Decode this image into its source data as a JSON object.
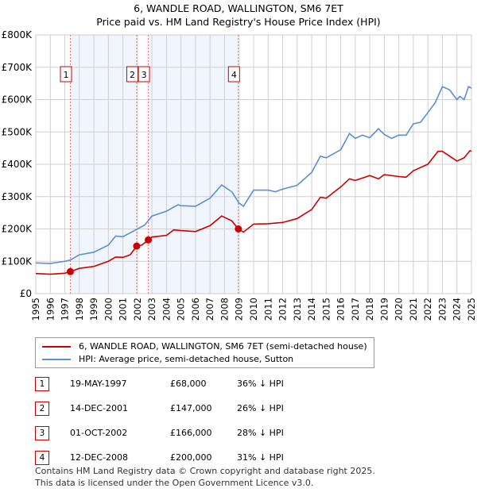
{
  "title": "6, WANDLE ROAD, WALLINGTON, SM6 7ET",
  "subtitle": "Price paid vs. HM Land Registry's House Price Index (HPI)",
  "chart_data": {
    "type": "line",
    "title": "6, WANDLE ROAD, WALLINGTON, SM6 7ET",
    "subtitle": "Price paid vs. HM Land Registry's House Price Index (HPI)",
    "xlim": [
      1995,
      2025
    ],
    "ylim": [
      0,
      800000
    ],
    "x_ticks": [
      "1995",
      "1996",
      "1997",
      "1998",
      "1999",
      "2000",
      "2001",
      "2002",
      "2003",
      "2004",
      "2005",
      "2006",
      "2007",
      "2008",
      "2009",
      "2010",
      "2011",
      "2012",
      "2013",
      "2014",
      "2015",
      "2016",
      "2017",
      "2018",
      "2019",
      "2020",
      "2021",
      "2022",
      "2023",
      "2024",
      "2025"
    ],
    "y_ticks": [
      {
        "v": 0,
        "label": "£0"
      },
      {
        "v": 100000,
        "label": "£100K"
      },
      {
        "v": 200000,
        "label": "£200K"
      },
      {
        "v": 300000,
        "label": "£300K"
      },
      {
        "v": 400000,
        "label": "£400K"
      },
      {
        "v": 500000,
        "label": "£500K"
      },
      {
        "v": 600000,
        "label": "£600K"
      },
      {
        "v": 700000,
        "label": "£700K"
      },
      {
        "v": 800000,
        "label": "£800K"
      }
    ],
    "grid": true,
    "series": [
      {
        "name": "6, WANDLE ROAD, WALLINGTON, SM6 7ET (semi-detached house)",
        "color": "#cc0000",
        "x": [
          1995,
          1996,
          1997,
          1997.38,
          1998,
          1999,
          2000,
          2000.5,
          2001,
          2001.5,
          2001.95,
          2002.3,
          2002.75,
          2003,
          2004,
          2004.5,
          2005,
          2006,
          2007,
          2007.8,
          2008.5,
          2008.95,
          2009.3,
          2010,
          2011,
          2012,
          2013,
          2014,
          2014.6,
          2015,
          2016,
          2016.6,
          2017,
          2018,
          2018.6,
          2019,
          2020,
          2020.5,
          2021,
          2022,
          2022.7,
          2023,
          2023.5,
          2024,
          2024.5,
          2024.9,
          2025
        ],
        "y": [
          62000,
          60000,
          63000,
          68000,
          78000,
          84000,
          100000,
          113000,
          112000,
          120000,
          147000,
          150000,
          166000,
          175000,
          180000,
          197000,
          195000,
          192000,
          210000,
          240000,
          225000,
          200000,
          190000,
          215000,
          216000,
          220000,
          232000,
          260000,
          298000,
          295000,
          330000,
          355000,
          350000,
          365000,
          355000,
          368000,
          362000,
          360000,
          380000,
          400000,
          440000,
          440000,
          425000,
          410000,
          420000,
          442000,
          440000
        ]
      },
      {
        "name": "HPI: Average price, semi-detached house, Sutton",
        "color": "#5b8fd4",
        "x": [
          1995,
          1996,
          1997,
          1997.38,
          1998,
          1999,
          2000,
          2000.5,
          2001,
          2002,
          2002.5,
          2003,
          2004,
          2004.8,
          2005,
          2006,
          2007,
          2007.8,
          2008.5,
          2009,
          2009.3,
          2010,
          2011,
          2011.5,
          2012,
          2013,
          2014,
          2014.6,
          2015,
          2016,
          2016.6,
          2017,
          2017.5,
          2018,
          2018.6,
          2019,
          2019.5,
          2020,
          2020.5,
          2021,
          2021.5,
          2022,
          2022.5,
          2023,
          2023.5,
          2024,
          2024.2,
          2024.5,
          2024.8,
          2025
        ],
        "y": [
          95000,
          93000,
          100000,
          104000,
          120000,
          128000,
          150000,
          178000,
          176000,
          200000,
          212000,
          240000,
          255000,
          275000,
          272000,
          270000,
          295000,
          336000,
          315000,
          280000,
          270000,
          320000,
          320000,
          315000,
          323000,
          335000,
          375000,
          425000,
          420000,
          445000,
          495000,
          480000,
          490000,
          482000,
          510000,
          492000,
          480000,
          490000,
          490000,
          525000,
          530000,
          560000,
          590000,
          640000,
          630000,
          600000,
          610000,
          600000,
          640000,
          635000
        ]
      }
    ],
    "sales": [
      {
        "n": "1",
        "x": 1997.38,
        "y": 68000
      },
      {
        "n": "2",
        "x": 2001.95,
        "y": 147000
      },
      {
        "n": "3",
        "x": 2002.75,
        "y": 166000
      },
      {
        "n": "4",
        "x": 2008.95,
        "y": 200000
      }
    ],
    "shaded_ranges": [
      [
        1997.38,
        2001.95
      ],
      [
        2002.75,
        2008.95
      ]
    ]
  },
  "legend": [
    "6, WANDLE ROAD, WALLINGTON, SM6 7ET (semi-detached house)",
    "HPI: Average price, semi-detached house, Sutton"
  ],
  "table": [
    {
      "n": "1",
      "date": "19-MAY-1997",
      "price": "£68,000",
      "hpi": "36% ↓ HPI"
    },
    {
      "n": "2",
      "date": "14-DEC-2001",
      "price": "£147,000",
      "hpi": "26% ↓ HPI"
    },
    {
      "n": "3",
      "date": "01-OCT-2002",
      "price": "£166,000",
      "hpi": "28% ↓ HPI"
    },
    {
      "n": "4",
      "date": "12-DEC-2008",
      "price": "£200,000",
      "hpi": "31% ↓ HPI"
    }
  ],
  "footer": [
    "Contains HM Land Registry data © Crown copyright and database right 2025.",
    "This data is licensed under the Open Government Licence v3.0."
  ]
}
